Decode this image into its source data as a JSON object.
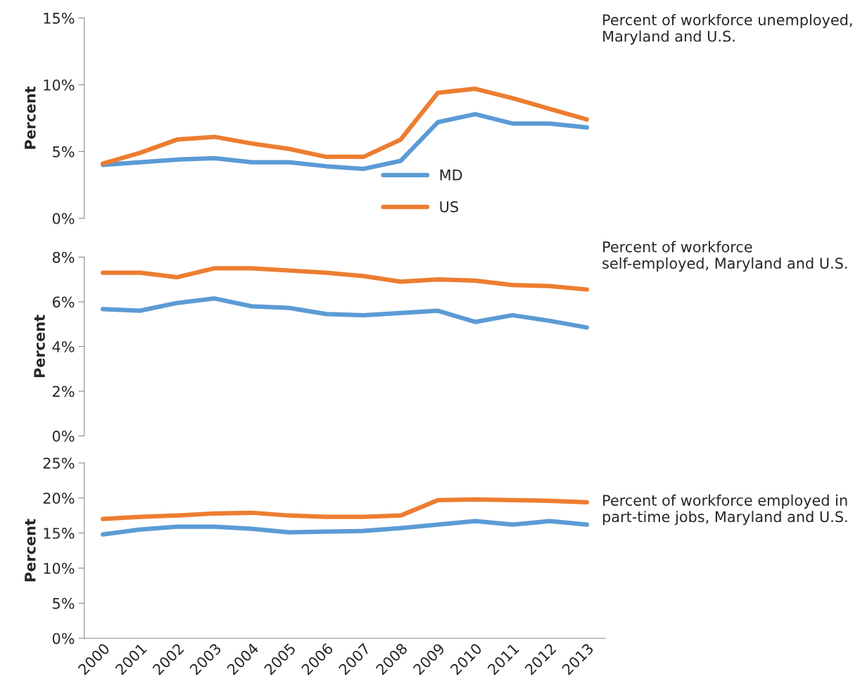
{
  "chart_data": [
    {
      "type": "line",
      "title": "Percent of workforce unemployed, Maryland and U.S.",
      "ylabel": "Percent",
      "categories": [
        "2000",
        "2001",
        "2002",
        "2003",
        "2004",
        "2005",
        "2006",
        "2007",
        "2008",
        "2009",
        "2010",
        "2011",
        "2012",
        "2013"
      ],
      "tick_labels": "y",
      "legend": "bottom",
      "grid": false,
      "ylim": [
        0,
        15
      ],
      "yticks": [
        {
          "value": 0,
          "label": "0%"
        },
        {
          "value": 5,
          "label": "5%"
        },
        {
          "value": 10,
          "label": "10%"
        },
        {
          "value": 15,
          "label": "15%"
        }
      ],
      "series": [
        {
          "name": "MD",
          "color": "#5b9bd5",
          "values": [
            4.0,
            4.2,
            4.4,
            4.5,
            4.2,
            4.2,
            3.9,
            3.7,
            4.3,
            7.2,
            7.8,
            7.1,
            7.1,
            6.8
          ]
        },
        {
          "name": "US",
          "color": "#ed7d31",
          "values": [
            4.1,
            4.9,
            5.9,
            6.1,
            5.6,
            5.2,
            4.6,
            4.6,
            5.9,
            9.4,
            9.7,
            9.0,
            8.2,
            7.4
          ]
        }
      ]
    },
    {
      "type": "line",
      "title": "Percent of workforce self-employed, Maryland and U.S.",
      "ylabel": "Percent",
      "categories": [
        "2000",
        "2001",
        "2002",
        "2003",
        "2004",
        "2005",
        "2006",
        "2007",
        "2008",
        "2009",
        "2010",
        "2011",
        "2012",
        "2013"
      ],
      "tick_labels": "y",
      "grid": false,
      "ylim": [
        0,
        8
      ],
      "yticks": [
        {
          "value": 0,
          "label": "0%"
        },
        {
          "value": 2,
          "label": "2%"
        },
        {
          "value": 4,
          "label": "4%"
        },
        {
          "value": 6,
          "label": "6%"
        },
        {
          "value": 8,
          "label": "8%"
        }
      ],
      "series": [
        {
          "color": "#5b9bd5",
          "values": [
            5.67,
            5.6,
            5.95,
            6.15,
            5.8,
            5.73,
            5.45,
            5.4,
            5.5,
            5.6,
            5.1,
            5.4,
            5.15,
            4.85
          ]
        },
        {
          "color": "#ed7d31",
          "values": [
            7.3,
            7.3,
            7.1,
            7.5,
            7.5,
            7.4,
            7.3,
            7.15,
            6.9,
            7.0,
            6.95,
            6.75,
            6.7,
            6.55
          ]
        }
      ]
    },
    {
      "type": "line",
      "title": "Percent of workforce employed in part-time jobs, Maryland and U.S.",
      "ylabel": "Percent",
      "categories": [
        "2000",
        "2001",
        "2002",
        "2003",
        "2004",
        "2005",
        "2006",
        "2007",
        "2008",
        "2009",
        "2010",
        "2011",
        "2012",
        "2013"
      ],
      "grid": false,
      "ylim": [
        0,
        25
      ],
      "yticks": [
        {
          "value": 0,
          "label": "0%"
        },
        {
          "value": 5,
          "label": "5%"
        },
        {
          "value": 10,
          "label": "10%"
        },
        {
          "value": 15,
          "label": "15%"
        },
        {
          "value": 20,
          "label": "20%"
        },
        {
          "value": 25,
          "label": "25%"
        }
      ],
      "series": [
        {
          "color": "#5b9bd5",
          "values": [
            14.8,
            15.5,
            15.9,
            15.9,
            15.6,
            15.1,
            15.2,
            15.3,
            15.7,
            16.2,
            16.7,
            16.2,
            16.7,
            16.2
          ]
        },
        {
          "color": "#ed7d31",
          "values": [
            17.0,
            17.3,
            17.5,
            17.8,
            17.9,
            17.5,
            17.3,
            17.3,
            17.5,
            19.7,
            19.8,
            19.7,
            19.6,
            19.4
          ]
        }
      ]
    }
  ]
}
